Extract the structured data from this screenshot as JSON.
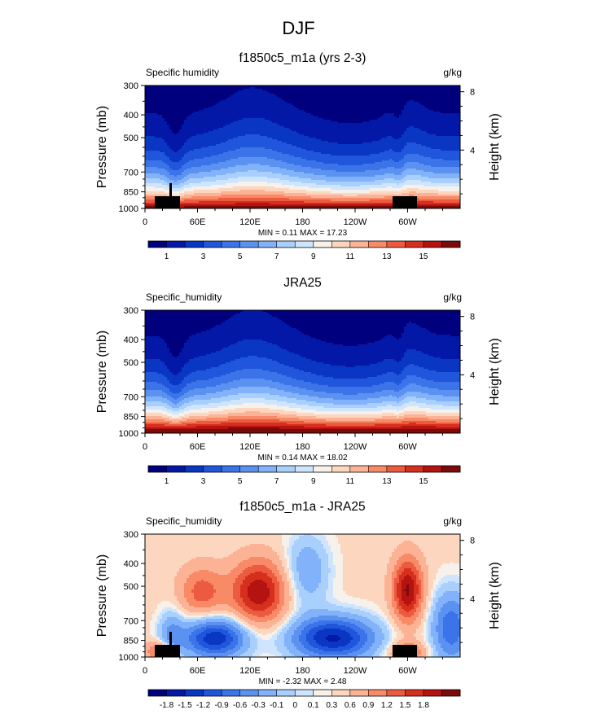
{
  "figure": {
    "title": "DJF"
  },
  "chart_data": [
    {
      "type": "contour",
      "title": "f1850c5_m1a (yrs 2-3)",
      "left_label": "Specific humidity",
      "right_label": "g/kg",
      "ylabel": "Pressure (mb)",
      "ylabel_right": "Height (km)",
      "x_ticks": [
        "0",
        "60E",
        "120E",
        "180",
        "120W",
        "60W"
      ],
      "x_tick_values": [
        0,
        60,
        120,
        180,
        240,
        300
      ],
      "xlim": [
        0,
        360
      ],
      "y_ticks": [
        "300",
        "400",
        "500",
        "700",
        "850",
        "1000"
      ],
      "y_tick_values": [
        300,
        400,
        500,
        700,
        850,
        1000
      ],
      "ylim": [
        1000,
        300
      ],
      "right_ticks": [
        "8",
        "4"
      ],
      "right_tick_values": [
        8,
        4
      ],
      "stats": "MIN = 0.11 MAX = 17.23",
      "field": "moist",
      "colorbar": {
        "colors": [
          "#00007f",
          "#0318a6",
          "#0a36c4",
          "#1f56db",
          "#3b74e8",
          "#5b92f2",
          "#81b2fa",
          "#a9cffd",
          "#cfe5fd",
          "#f6f1ea",
          "#fdd6bf",
          "#fcb395",
          "#f88a68",
          "#ec5b3f",
          "#d62f1e",
          "#b5130f",
          "#7d0a0a"
        ],
        "labels": [
          "1",
          "3",
          "5",
          "7",
          "9",
          "11",
          "13",
          "15"
        ],
        "label_boundaries": [
          1,
          3,
          5,
          7,
          9,
          11,
          13,
          15
        ]
      }
    },
    {
      "type": "contour",
      "title": "JRA25",
      "left_label": "Specific_humidity",
      "right_label": "g/kg",
      "ylabel": "Pressure (mb)",
      "ylabel_right": "Height (km)",
      "x_ticks": [
        "0",
        "60E",
        "120E",
        "180",
        "120W",
        "60W"
      ],
      "x_tick_values": [
        0,
        60,
        120,
        180,
        240,
        300
      ],
      "xlim": [
        0,
        360
      ],
      "y_ticks": [
        "300",
        "400",
        "500",
        "700",
        "850",
        "1000"
      ],
      "y_tick_values": [
        300,
        400,
        500,
        700,
        850,
        1000
      ],
      "ylim": [
        1000,
        300
      ],
      "right_ticks": [
        "8",
        "4"
      ],
      "right_tick_values": [
        8,
        4
      ],
      "stats": "MIN = 0.14 MAX = 18.02",
      "field": "moist",
      "colorbar": {
        "colors": [
          "#00007f",
          "#0318a6",
          "#0a36c4",
          "#1f56db",
          "#3b74e8",
          "#5b92f2",
          "#81b2fa",
          "#a9cffd",
          "#cfe5fd",
          "#f6f1ea",
          "#fdd6bf",
          "#fcb395",
          "#f88a68",
          "#ec5b3f",
          "#d62f1e",
          "#b5130f",
          "#7d0a0a"
        ],
        "labels": [
          "1",
          "3",
          "5",
          "7",
          "9",
          "11",
          "13",
          "15"
        ],
        "label_boundaries": [
          1,
          3,
          5,
          7,
          9,
          11,
          13,
          15
        ]
      }
    },
    {
      "type": "contour",
      "title": "f1850c5_m1a - JRA25",
      "left_label": "Specific_humidity",
      "right_label": "g/kg",
      "ylabel": "Pressure (mb)",
      "ylabel_right": "Height (km)",
      "x_ticks": [
        "0",
        "60E",
        "120E",
        "180",
        "120W",
        "60W"
      ],
      "x_tick_values": [
        0,
        60,
        120,
        180,
        240,
        300
      ],
      "xlim": [
        0,
        360
      ],
      "y_ticks": [
        "300",
        "400",
        "500",
        "700",
        "850",
        "1000"
      ],
      "y_tick_values": [
        300,
        400,
        500,
        700,
        850,
        1000
      ],
      "ylim": [
        1000,
        300
      ],
      "right_ticks": [
        "8",
        "4"
      ],
      "right_tick_values": [
        8,
        4
      ],
      "stats": "MIN = -2.32 MAX = 2.48",
      "field": "diff",
      "colorbar": {
        "colors": [
          "#00007f",
          "#0318a6",
          "#0a36c4",
          "#1f56db",
          "#3b74e8",
          "#5b92f2",
          "#81b2fa",
          "#a9cffd",
          "#cfe5fd",
          "#f6f1ea",
          "#fdd6bf",
          "#fcb395",
          "#f88a68",
          "#ec5b3f",
          "#d62f1e",
          "#b5130f",
          "#7d0a0a"
        ],
        "labels": [
          "-1.8",
          "-1.5",
          "-1.2",
          "-0.9",
          "-0.6",
          "-0.3",
          "-0.1",
          "0",
          "0.1",
          "0.3",
          "0.6",
          "0.9",
          "1.2",
          "1.5",
          "1.8"
        ],
        "label_boundaries": [
          1,
          2,
          3,
          4,
          5,
          6,
          7,
          8,
          9,
          10,
          11,
          12,
          13,
          14,
          15
        ]
      }
    }
  ]
}
